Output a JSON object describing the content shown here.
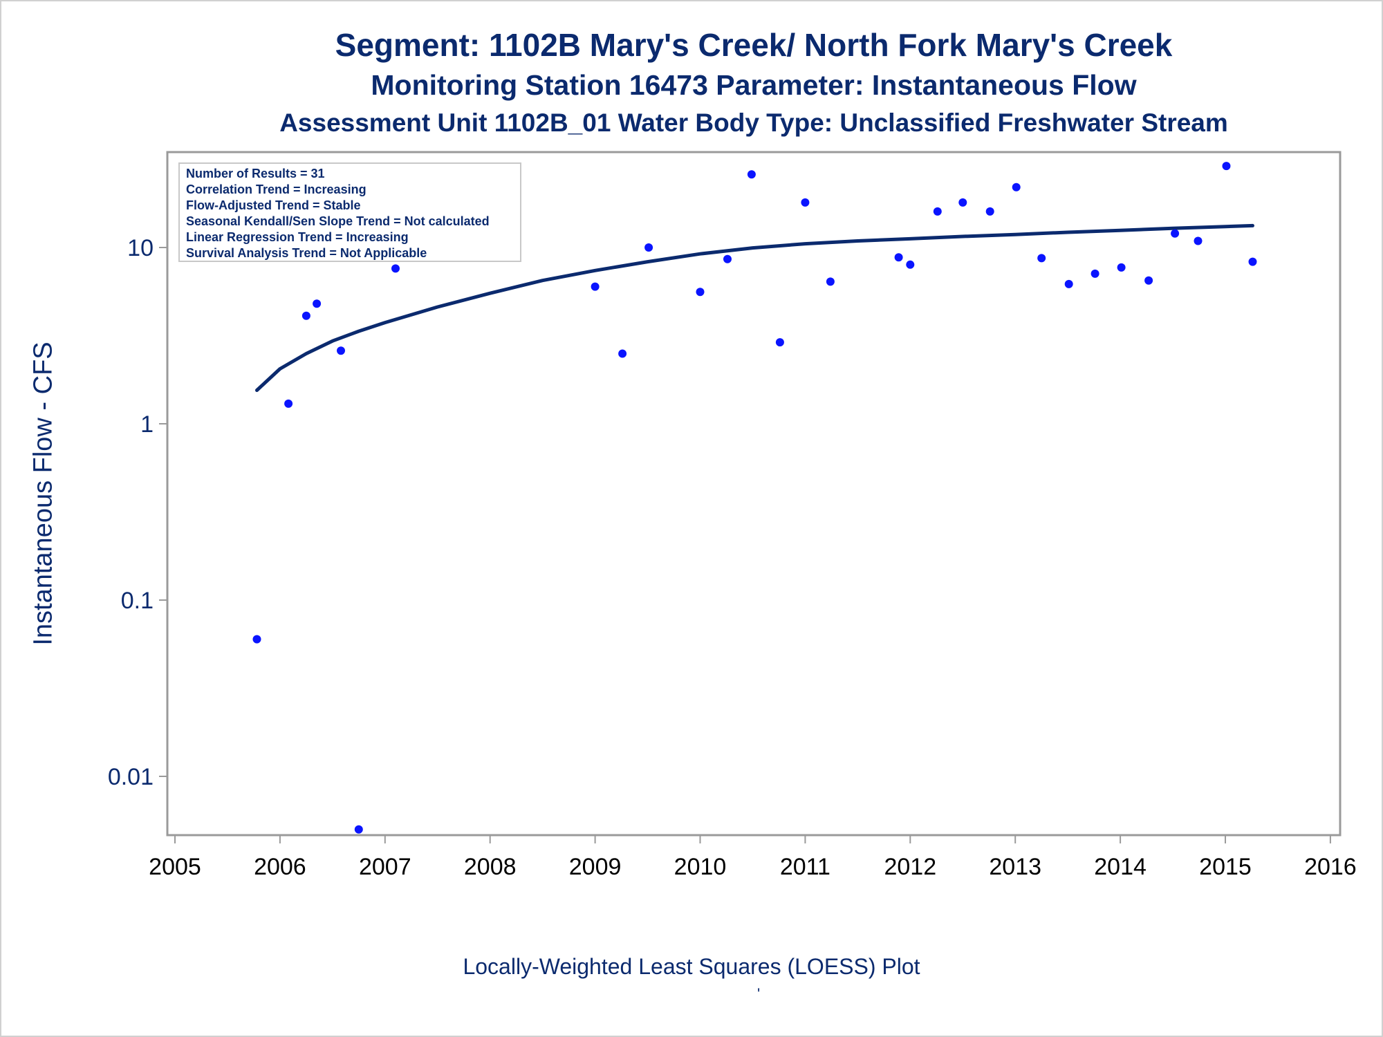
{
  "chart_data": {
    "type": "scatter",
    "title": "Segment: 1102B  Mary's Creek/ North Fork Mary's Creek",
    "subtitle": "Monitoring Station 16473 Parameter: Instantaneous Flow",
    "subtitle2": "Assessment Unit 1102B_01   Water Body Type: Unclassified Freshwater Stream",
    "ylabel": "Instantaneous Flow - CFS",
    "footnote": "Locally-Weighted Least Squares (LOESS) Plot",
    "footnote_mark": "'",
    "yscale": "log",
    "xlim": [
      2005,
      2016
    ],
    "ylim": [
      0.0043,
      50
    ],
    "xticks": [
      "2005",
      "2006",
      "2007",
      "2008",
      "2009",
      "2010",
      "2011",
      "2012",
      "2013",
      "2014",
      "2015",
      "2016"
    ],
    "yticks": [
      {
        "value": 0.01,
        "label": "0.01"
      },
      {
        "value": 0.1,
        "label": "0.1"
      },
      {
        "value": 1,
        "label": "1"
      },
      {
        "value": 10,
        "label": "10"
      }
    ],
    "legend_placement": "top-left",
    "legend_lines": [
      "Number of Results = 31",
      "Correlation Trend = Increasing",
      "Flow-Adjusted Trend = Stable",
      "Seasonal Kendall/Sen Slope Trend = Not calculated",
      "Linear Regression Trend = Increasing",
      "Survival Analysis Trend = Not Applicable"
    ],
    "points": [
      {
        "x": 2005.78,
        "y": 0.06
      },
      {
        "x": 2006.08,
        "y": 1.3
      },
      {
        "x": 2006.25,
        "y": 4.1
      },
      {
        "x": 2006.35,
        "y": 4.8
      },
      {
        "x": 2006.58,
        "y": 2.6
      },
      {
        "x": 2006.75,
        "y": 0.005
      },
      {
        "x": 2007.1,
        "y": 7.6
      },
      {
        "x": 2009.0,
        "y": 6.0
      },
      {
        "x": 2009.26,
        "y": 2.5
      },
      {
        "x": 2009.51,
        "y": 10.0
      },
      {
        "x": 2010.0,
        "y": 5.6
      },
      {
        "x": 2010.26,
        "y": 8.6
      },
      {
        "x": 2010.49,
        "y": 26.0
      },
      {
        "x": 2010.76,
        "y": 2.9
      },
      {
        "x": 2011.0,
        "y": 18.0
      },
      {
        "x": 2011.24,
        "y": 6.4
      },
      {
        "x": 2011.89,
        "y": 8.8
      },
      {
        "x": 2012.0,
        "y": 8.0
      },
      {
        "x": 2012.26,
        "y": 16.0
      },
      {
        "x": 2012.5,
        "y": 18.0
      },
      {
        "x": 2012.76,
        "y": 16.0
      },
      {
        "x": 2013.01,
        "y": 22.0
      },
      {
        "x": 2013.25,
        "y": 8.7
      },
      {
        "x": 2013.51,
        "y": 6.2
      },
      {
        "x": 2013.76,
        "y": 7.1
      },
      {
        "x": 2014.01,
        "y": 7.7
      },
      {
        "x": 2014.27,
        "y": 6.5
      },
      {
        "x": 2014.52,
        "y": 12.0
      },
      {
        "x": 2014.74,
        "y": 10.9
      },
      {
        "x": 2015.01,
        "y": 29.0
      },
      {
        "x": 2015.26,
        "y": 8.3
      }
    ],
    "loess": {
      "x": [
        2005.78,
        2006.0,
        2006.25,
        2006.5,
        2006.75,
        2007.0,
        2007.5,
        2008.0,
        2008.5,
        2009.0,
        2009.5,
        2010.0,
        2010.5,
        2011.0,
        2011.5,
        2012.0,
        2012.5,
        2013.0,
        2013.5,
        2014.0,
        2014.5,
        2015.0,
        2015.26
      ],
      "y": [
        1.55,
        2.05,
        2.5,
        2.95,
        3.35,
        3.75,
        4.6,
        5.5,
        6.5,
        7.4,
        8.3,
        9.2,
        9.95,
        10.5,
        10.9,
        11.2,
        11.55,
        11.85,
        12.2,
        12.5,
        12.85,
        13.15,
        13.3
      ]
    },
    "colors": {
      "points": "#0a14ff",
      "line": "#0b2a6e",
      "text": "#0b2a6e",
      "frame": "#9a9a9a"
    }
  }
}
